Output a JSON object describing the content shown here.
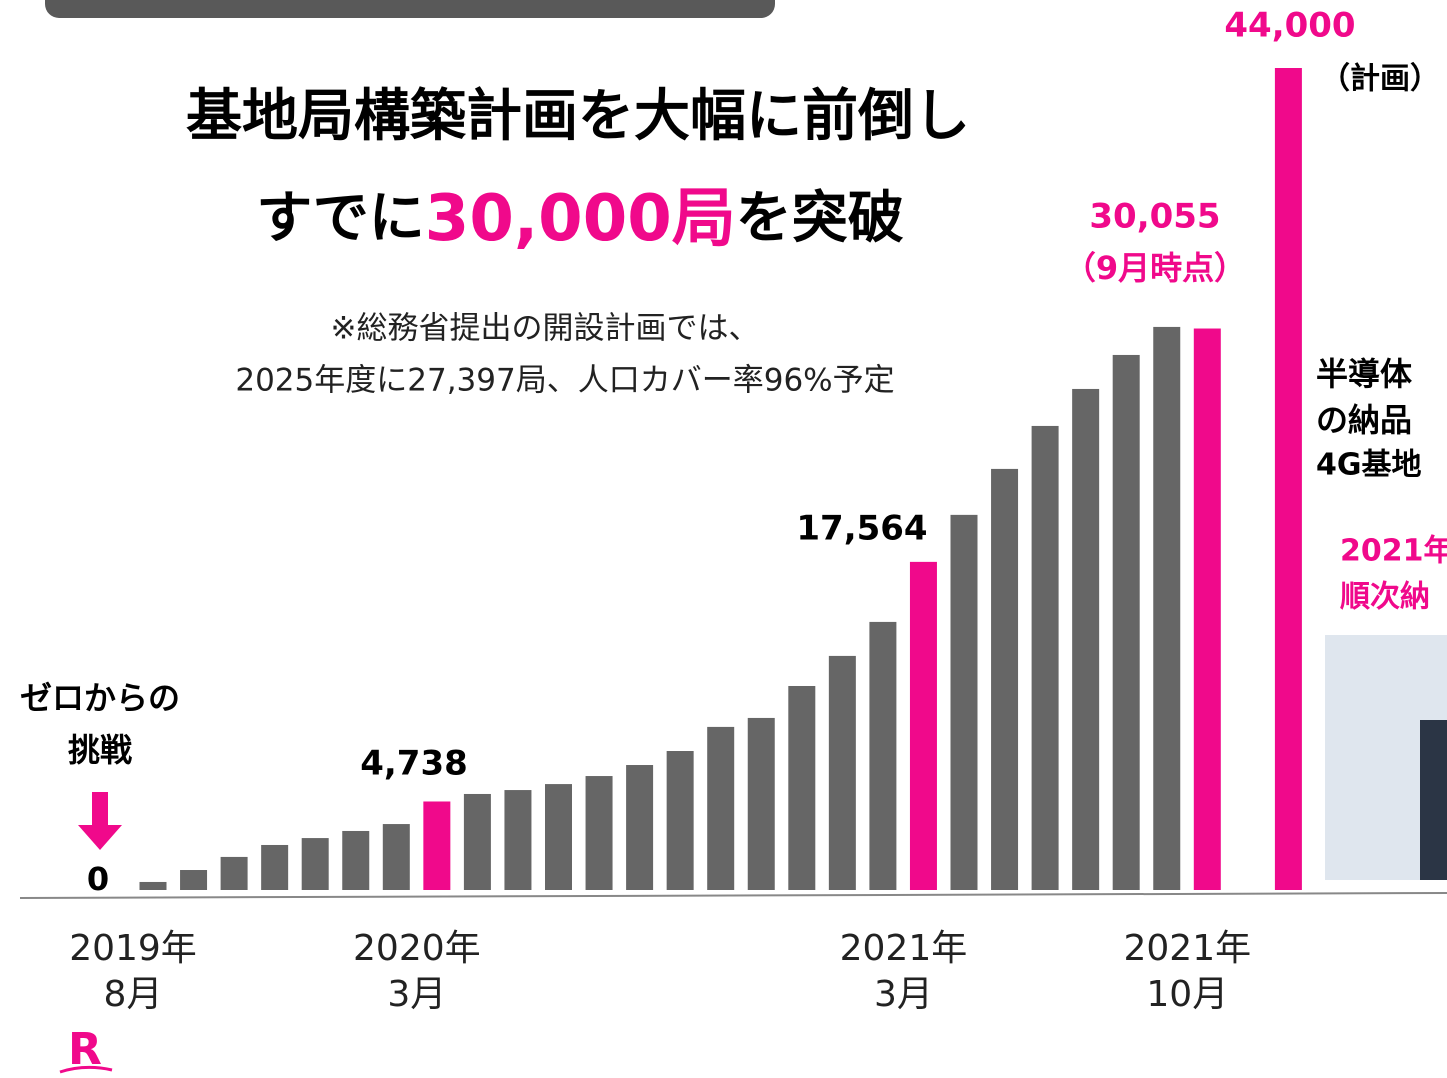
{
  "header": {
    "title": "基地局構築計画を大幅に前倒し",
    "subtitle_parts": [
      "すでに",
      "30,000局",
      "を突破"
    ],
    "note": [
      "※総務省提出の開設計画では、",
      "2025年度に27,397局、人口カバー率96%予定"
    ]
  },
  "side_text": {
    "lines": [
      "半導体",
      "の納品",
      "4G基地"
    ],
    "highlight_lines": [
      "2021年",
      "順次納"
    ]
  },
  "logo": "R",
  "chart_data": {
    "type": "bar",
    "categories": [
      "2019年\n8月",
      null,
      null,
      null,
      null,
      null,
      null,
      "2020年\n3月",
      null,
      null,
      null,
      null,
      null,
      null,
      null,
      null,
      null,
      null,
      null,
      "2021年\n3月",
      null,
      null,
      null,
      null,
      null,
      null,
      "2021年\n10月",
      null,
      null
    ],
    "values": [
      430,
      1070,
      1770,
      2410,
      2780,
      3160,
      3530,
      4738,
      5140,
      5350,
      5670,
      6100,
      6690,
      7440,
      8730,
      9210,
      10920,
      12530,
      14350,
      17564,
      20080,
      22540,
      24840,
      26820,
      28640,
      30140,
      30055,
      null,
      44000
    ],
    "value_labels": [
      null,
      null,
      null,
      null,
      null,
      null,
      null,
      "4,738",
      null,
      null,
      null,
      null,
      null,
      null,
      null,
      null,
      null,
      null,
      null,
      "17,564",
      null,
      null,
      null,
      null,
      null,
      null,
      "30,055",
      null,
      "44,000"
    ],
    "colors": [
      "#666666",
      "#666666",
      "#666666",
      "#666666",
      "#666666",
      "#666666",
      "#666666",
      "#f0098b",
      "#666666",
      "#666666",
      "#666666",
      "#666666",
      "#666666",
      "#666666",
      "#666666",
      "#666666",
      "#666666",
      "#666666",
      "#666666",
      "#f0098b",
      "#666666",
      "#666666",
      "#666666",
      "#666666",
      "#666666",
      "#666666",
      "#f0098b",
      null,
      "#f0098b"
    ],
    "ylim": [
      0,
      44000
    ],
    "annotations": {
      "start": [
        "ゼロからの",
        "挑戦"
      ],
      "start_value": "0",
      "current_note": "（9月時点）",
      "plan_note": "（計画）"
    }
  }
}
